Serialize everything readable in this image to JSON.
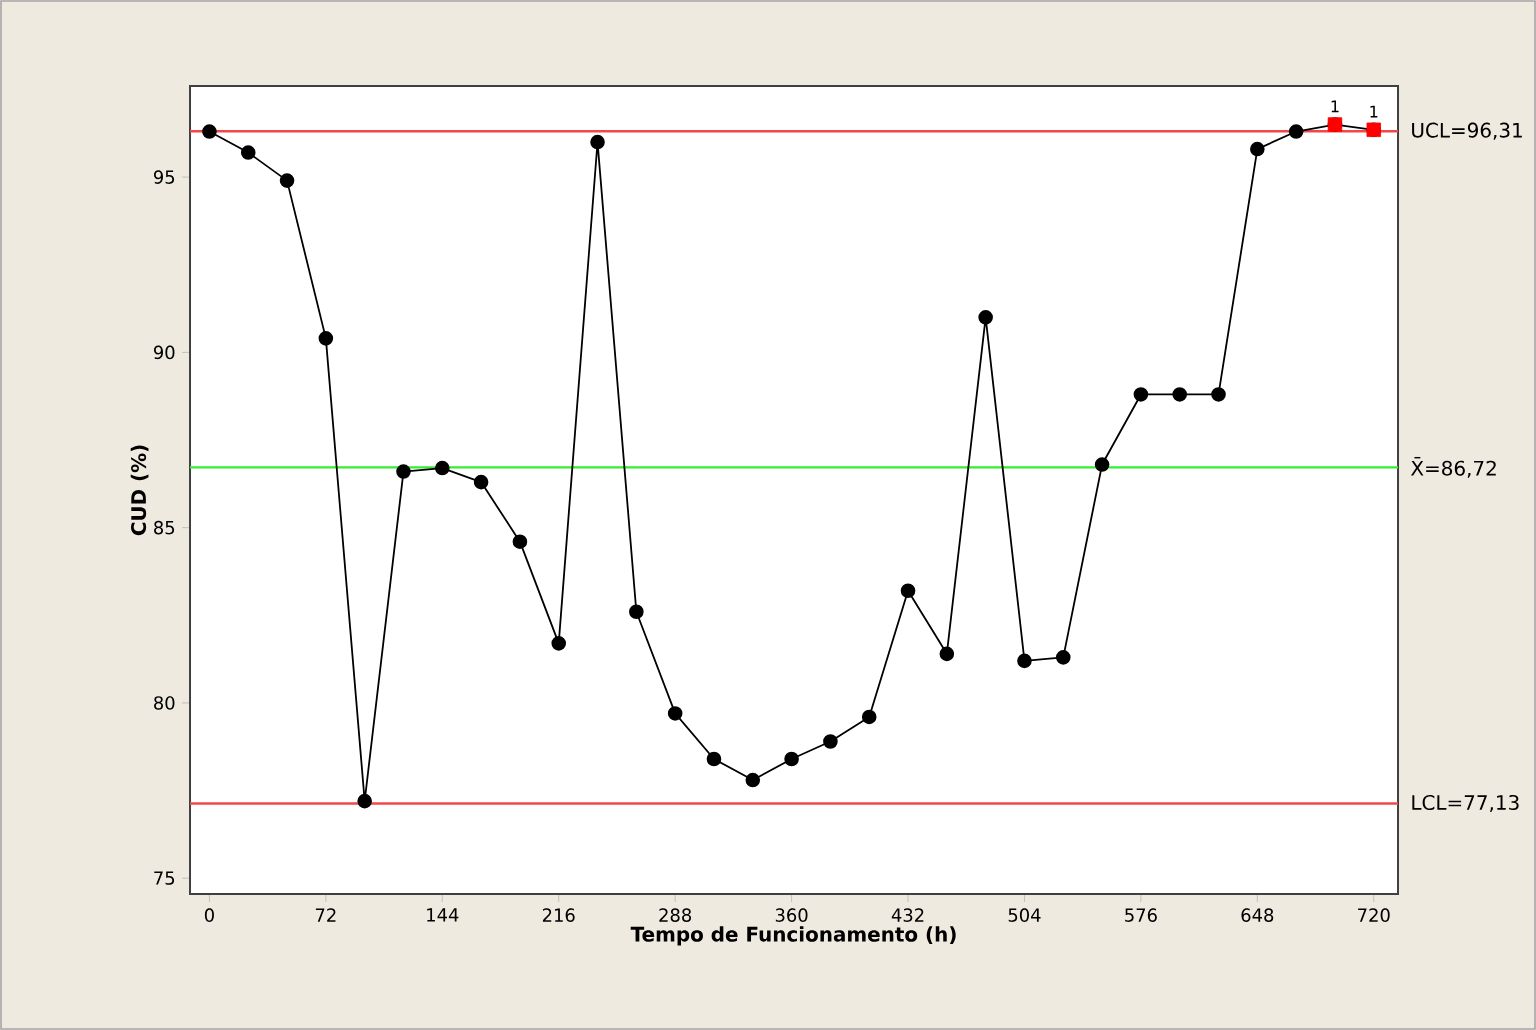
{
  "chart_data": {
    "type": "line",
    "xlabel": "Tempo de Funcionamento (h)",
    "ylabel": "CUD (%)",
    "x": [
      0,
      24,
      48,
      72,
      96,
      120,
      144,
      168,
      192,
      216,
      240,
      264,
      288,
      312,
      336,
      360,
      384,
      408,
      432,
      456,
      480,
      504,
      528,
      552,
      576,
      600,
      624,
      648,
      672,
      696,
      720
    ],
    "series": [
      {
        "color": "#000000",
        "marker": "circle",
        "values": [
          96.3,
          95.7,
          94.9,
          90.4,
          77.2,
          86.6,
          86.7,
          86.3,
          84.6,
          81.7,
          96.0,
          82.6,
          79.7,
          78.4,
          77.8,
          78.4,
          78.9,
          79.6,
          83.2,
          81.4,
          91.0,
          81.2,
          81.3,
          86.8,
          88.8,
          88.8,
          88.8,
          95.8,
          96.3,
          96.5,
          96.35
        ]
      },
      {
        "type": "scatter",
        "color": "#ff0000",
        "marker": "square",
        "values": [
          null,
          null,
          null,
          null,
          null,
          null,
          null,
          null,
          null,
          null,
          null,
          null,
          null,
          null,
          null,
          null,
          null,
          null,
          null,
          null,
          null,
          null,
          null,
          null,
          null,
          null,
          null,
          null,
          null,
          96.5,
          96.35
        ]
      }
    ],
    "xlim": [
      -12,
      735
    ],
    "ylim": [
      74.55,
      97.6
    ],
    "xticks": [
      0,
      72,
      144,
      216,
      288,
      360,
      432,
      504,
      576,
      648,
      720
    ],
    "yticks": [
      75,
      80,
      85,
      90,
      95
    ],
    "ref_lines": [
      {
        "axis": "y",
        "value": 96.31,
        "label": "UCL=96,31",
        "color": "#f04848"
      },
      {
        "axis": "y",
        "value": 86.72,
        "label": "X̄=86,72",
        "color": "#33ee33"
      },
      {
        "axis": "y",
        "value": 77.13,
        "label": "LCL=77,13",
        "color": "#f04848"
      }
    ],
    "annotations": [
      {
        "text": "1",
        "x": 696,
        "y": 96.5
      },
      {
        "text": "1",
        "x": 720,
        "y": 96.35
      }
    ]
  }
}
